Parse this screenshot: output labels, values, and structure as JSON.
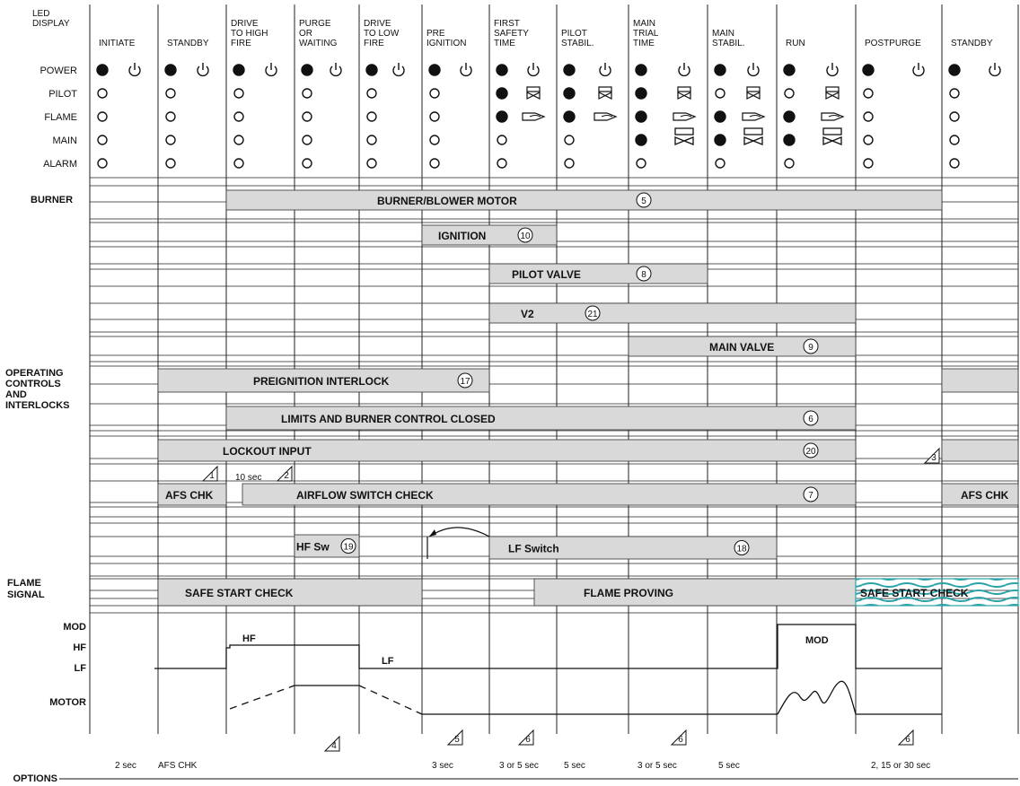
{
  "led_header": "LED\nDISPLAY",
  "columns": [
    {
      "label": "INITIATE"
    },
    {
      "label": "STANDBY"
    },
    {
      "label": "DRIVE\nTO HIGH\nFIRE"
    },
    {
      "label": "PURGE\nOR\nWAITING"
    },
    {
      "label": "DRIVE\nTO LOW\nFIRE"
    },
    {
      "label": "PRE\nIGNITION"
    },
    {
      "label": "FIRST\nSAFETY\nTIME"
    },
    {
      "label": "PILOT\nSTABIL."
    },
    {
      "label": "MAIN\nTRIAL\nTIME"
    },
    {
      "label": "MAIN\nSTABIL."
    },
    {
      "label": "RUN"
    },
    {
      "label": "POSTPURGE"
    },
    {
      "label": "STANDBY"
    }
  ],
  "led_rows": [
    "POWER",
    "PILOT",
    "FLAME",
    "MAIN",
    "ALARM"
  ],
  "led_states": [
    [
      "on",
      "off",
      "off",
      "off",
      "off"
    ],
    [
      "on",
      "off",
      "off",
      "off",
      "off"
    ],
    [
      "on",
      "off",
      "off",
      "off",
      "off"
    ],
    [
      "on",
      "off",
      "off",
      "off",
      "off"
    ],
    [
      "on",
      "off",
      "off",
      "off",
      "off"
    ],
    [
      "on",
      "off",
      "off",
      "off",
      "off"
    ],
    [
      "on",
      "on",
      "on",
      "off",
      "off"
    ],
    [
      "on",
      "on",
      "on",
      "off",
      "off"
    ],
    [
      "on",
      "on",
      "on",
      "on",
      "off"
    ],
    [
      "on",
      "off",
      "on",
      "on",
      "off"
    ],
    [
      "on",
      "off",
      "on",
      "on",
      "off"
    ],
    [
      "on",
      "off",
      "off",
      "off",
      "off"
    ],
    [
      "on",
      "off",
      "off",
      "off",
      "off"
    ]
  ],
  "section_labels": {
    "burner": "BURNER",
    "operating": "OPERATING\nCONTROLS\nAND\nINTERLOCKS",
    "flame_signal": "FLAME\nSIGNAL",
    "mod": "MOD",
    "hf": "HF",
    "lf": "LF",
    "motor": "MOTOR",
    "options": "OPTIONS"
  },
  "bars": [
    {
      "label": "BURNER/BLOWER MOTOR",
      "num": "5"
    },
    {
      "label": "IGNITION",
      "num": "10"
    },
    {
      "label": "PILOT VALVE",
      "num": "8"
    },
    {
      "label": "V2",
      "num": "21"
    },
    {
      "label": "MAIN VALVE",
      "num": "9"
    },
    {
      "label": "PREIGNITION INTERLOCK",
      "num": "17"
    },
    {
      "label": "LIMITS AND BURNER CONTROL CLOSED",
      "num": "6"
    },
    {
      "label": "LOCKOUT INPUT",
      "num": "20"
    },
    {
      "label": "AFS CHK",
      "num": ""
    },
    {
      "label": "AIRFLOW SWITCH CHECK",
      "num": "7"
    },
    {
      "label": "AFS CHK",
      "num": ""
    },
    {
      "label": "HF Sw",
      "num": "19"
    },
    {
      "label": "LF Switch",
      "num": "18"
    },
    {
      "label": "SAFE START CHECK",
      "num": ""
    },
    {
      "label": "FLAME PROVING",
      "num": ""
    },
    {
      "label": "SAFE START CHECK",
      "num": ""
    }
  ],
  "notes": {
    "tri1": "1",
    "tri2": "2",
    "tri3": "3",
    "tri4": "4",
    "tri5": "5",
    "tri6a": "6",
    "tri6b": "6",
    "tri6c": "6",
    "ten_sec": "10 sec",
    "hf_text": "HF",
    "lf_text": "LF",
    "mod_text": "MOD"
  },
  "options": [
    "2 sec",
    "AFS CHK",
    "3 sec",
    "3 or 5 sec",
    "5 sec",
    "3 or 5 sec",
    "5 sec",
    "2, 15 or 30 sec"
  ],
  "colors": {
    "bar": "#d9d9d9",
    "teal": "#2aa3a8"
  }
}
